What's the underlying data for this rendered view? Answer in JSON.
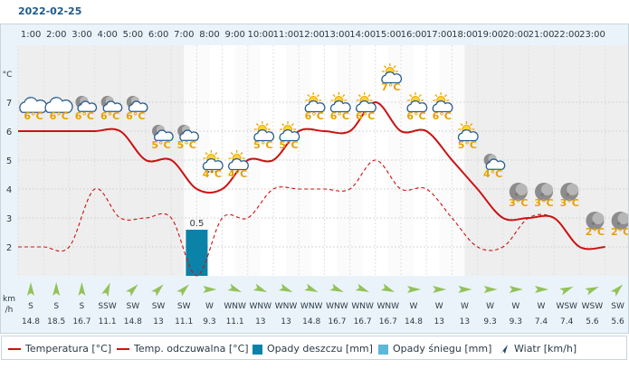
{
  "date": "2022-02-25",
  "unit_temp": "°C",
  "unit_wind": [
    "km",
    "/h"
  ],
  "chart_data": {
    "type": "line",
    "hours": [
      "1:00",
      "2:00",
      "3:00",
      "4:00",
      "5:00",
      "6:00",
      "7:00",
      "8:00",
      "9:00",
      "10:00",
      "11:00",
      "12:00",
      "13:00",
      "14:00",
      "15:00",
      "16:00",
      "17:00",
      "18:00",
      "19:00",
      "20:00",
      "21:00",
      "22:00",
      "23:00"
    ],
    "y_ticks": [
      2,
      3,
      4,
      5,
      6,
      7
    ],
    "ylim": [
      1,
      8.2
    ],
    "temperature": [
      6,
      6,
      6,
      6,
      6,
      5,
      5,
      4,
      4,
      5,
      5,
      6,
      6,
      6,
      7,
      6,
      6,
      5,
      4,
      3,
      3,
      3,
      2,
      2
    ],
    "temperature_labels": [
      "6°C",
      "6°C",
      "6°C",
      "6°C",
      "6°C",
      "5°C",
      "5°C",
      "4°C",
      "4°C",
      "5°C",
      "5°C",
      "6°C",
      "6°C",
      "6°C",
      "7°C",
      "6°C",
      "6°C",
      "5°C",
      "4°C",
      "3°C",
      "3°C",
      "3°C",
      "2°C",
      "2°C"
    ],
    "feels_like": [
      2,
      2,
      2,
      4,
      3,
      3,
      3,
      1,
      3,
      3,
      4,
      4,
      4,
      4,
      5,
      4,
      4,
      3,
      2,
      2,
      3,
      3,
      2,
      2
    ],
    "precipitation": [
      {
        "hour_index": 7,
        "rain_mm": 0.5,
        "label": "0.5"
      }
    ],
    "wind_direction": [
      "S",
      "S",
      "S",
      "SSW",
      "SW",
      "SW",
      "SW",
      "W",
      "WNW",
      "WNW",
      "WNW",
      "WNW",
      "WNW",
      "WNW",
      "WNW",
      "W",
      "W",
      "W",
      "W",
      "W",
      "W",
      "WSW",
      "WSW",
      "SW"
    ],
    "wind_speed": [
      "14.8",
      "18.5",
      "16.7",
      "11.1",
      "14.8",
      "13",
      "11.1",
      "9.3",
      "11.1",
      "13",
      "13",
      "14.8",
      "16.7",
      "16.7",
      "16.7",
      "14.8",
      "13",
      "13",
      "9.3",
      "9.3",
      "7.4",
      "7.4",
      "5.6",
      "5.6"
    ],
    "weather_icons": [
      "cloud-icon",
      "cloud-icon",
      "cloud-night-icon",
      "cloud-night-icon",
      "cloud-night-icon",
      "cloud-night-icon",
      "cloud-night-icon",
      "sun-cloud-snow-icon",
      "sun-cloud-icon",
      "sun-cloud-icon",
      "sun-cloud-icon",
      "sun-cloud-icon",
      "sun-cloud-icon",
      "sun-cloud-icon",
      "sun-cloud-icon",
      "sun-cloud-icon",
      "sun-cloud-icon",
      "sun-cloud-icon",
      "cloud-night-icon",
      "moon-icon",
      "moon-icon",
      "moon-icon",
      "moon-icon",
      "moon-icon"
    ],
    "colors": {
      "temperature": "#cc1111",
      "feels_like": "#cc1111",
      "rain": "#0b82a8",
      "snow": "#5bb8d8",
      "header_bg": "#eaf3f9",
      "night_bg": "#eeeeee",
      "label": "#e8a000",
      "wind_arrow": "#93c15a"
    }
  },
  "legend": {
    "temperature": "Temperatura [°C]",
    "feels_like": "Temp. odczuwalna [°C]",
    "rain": "Opady deszczu [mm]",
    "snow": "Opady śniegu [mm]",
    "wind": "Wiatr [km/h]"
  }
}
